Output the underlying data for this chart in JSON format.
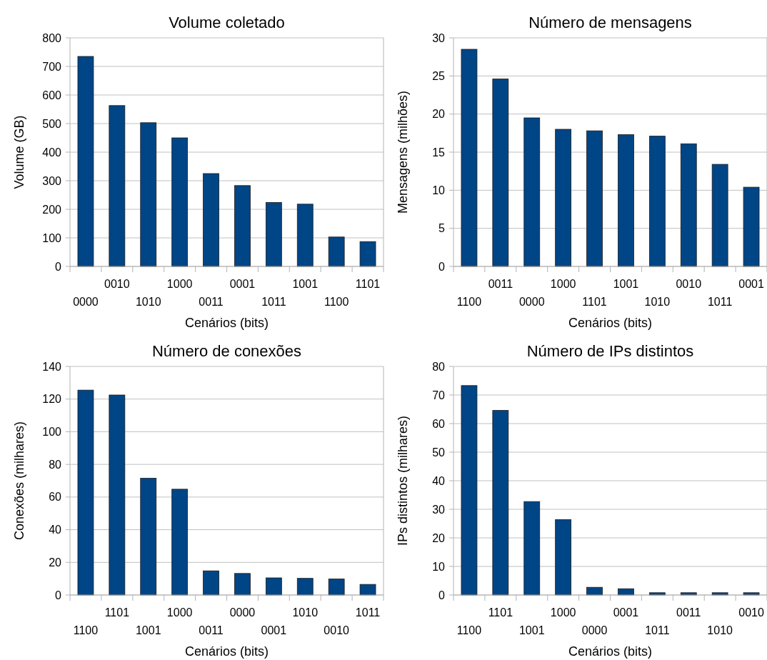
{
  "chart_data": [
    {
      "type": "bar",
      "title": "Volume coletado",
      "xlabel": "Cenários (bits)",
      "ylabel": "Volume (GB)",
      "categories": [
        "0000",
        "0010",
        "1010",
        "1000",
        "0011",
        "0001",
        "1011",
        "1001",
        "1100",
        "1101"
      ],
      "values": [
        735,
        563,
        503,
        450,
        325,
        283,
        224,
        218,
        103,
        87
      ],
      "color": "#004586",
      "ylim": [
        0,
        800
      ],
      "yticks": [
        0,
        100,
        200,
        300,
        400,
        500,
        600,
        700,
        800
      ],
      "grid": "y"
    },
    {
      "type": "bar",
      "title": "Número de mensagens",
      "xlabel": "Cenários (bits)",
      "ylabel": "Mensagens (milhões)",
      "categories": [
        "1100",
        "0011",
        "0000",
        "1000",
        "1101",
        "1001",
        "1010",
        "0010",
        "1011",
        "0001"
      ],
      "values": [
        28.5,
        24.6,
        19.5,
        18.0,
        17.8,
        17.3,
        17.1,
        16.1,
        13.4,
        10.4
      ],
      "color": "#004586",
      "ylim": [
        0,
        30
      ],
      "yticks": [
        0,
        5,
        10,
        15,
        20,
        25,
        30
      ],
      "grid": "y"
    },
    {
      "type": "bar",
      "title": "Número de conexões",
      "xlabel": "Cenários (bits)",
      "ylabel": "Conexões (milhares)",
      "categories": [
        "1100",
        "1101",
        "1001",
        "1000",
        "0011",
        "0000",
        "0001",
        "1010",
        "0010",
        "1011"
      ],
      "values": [
        125.5,
        122.5,
        71.5,
        64.8,
        14.8,
        13.2,
        10.5,
        10.2,
        9.8,
        6.5
      ],
      "color": "#004586",
      "ylim": [
        0,
        140
      ],
      "yticks": [
        0,
        20,
        40,
        60,
        80,
        100,
        120,
        140
      ],
      "grid": "y"
    },
    {
      "type": "bar",
      "title": "Número de IPs distintos",
      "xlabel": "Cenários (bits)",
      "ylabel": "IPs distintos (milhares)",
      "categories": [
        "1100",
        "1101",
        "1001",
        "1000",
        "0000",
        "0001",
        "1011",
        "0011",
        "1010",
        "0010"
      ],
      "values": [
        73.3,
        64.6,
        32.7,
        26.4,
        2.7,
        2.2,
        0.8,
        0.8,
        0.8,
        0.8
      ],
      "color": "#004586",
      "ylim": [
        0,
        80
      ],
      "yticks": [
        0,
        10,
        20,
        30,
        40,
        50,
        60,
        70,
        80
      ],
      "grid": "y"
    }
  ]
}
